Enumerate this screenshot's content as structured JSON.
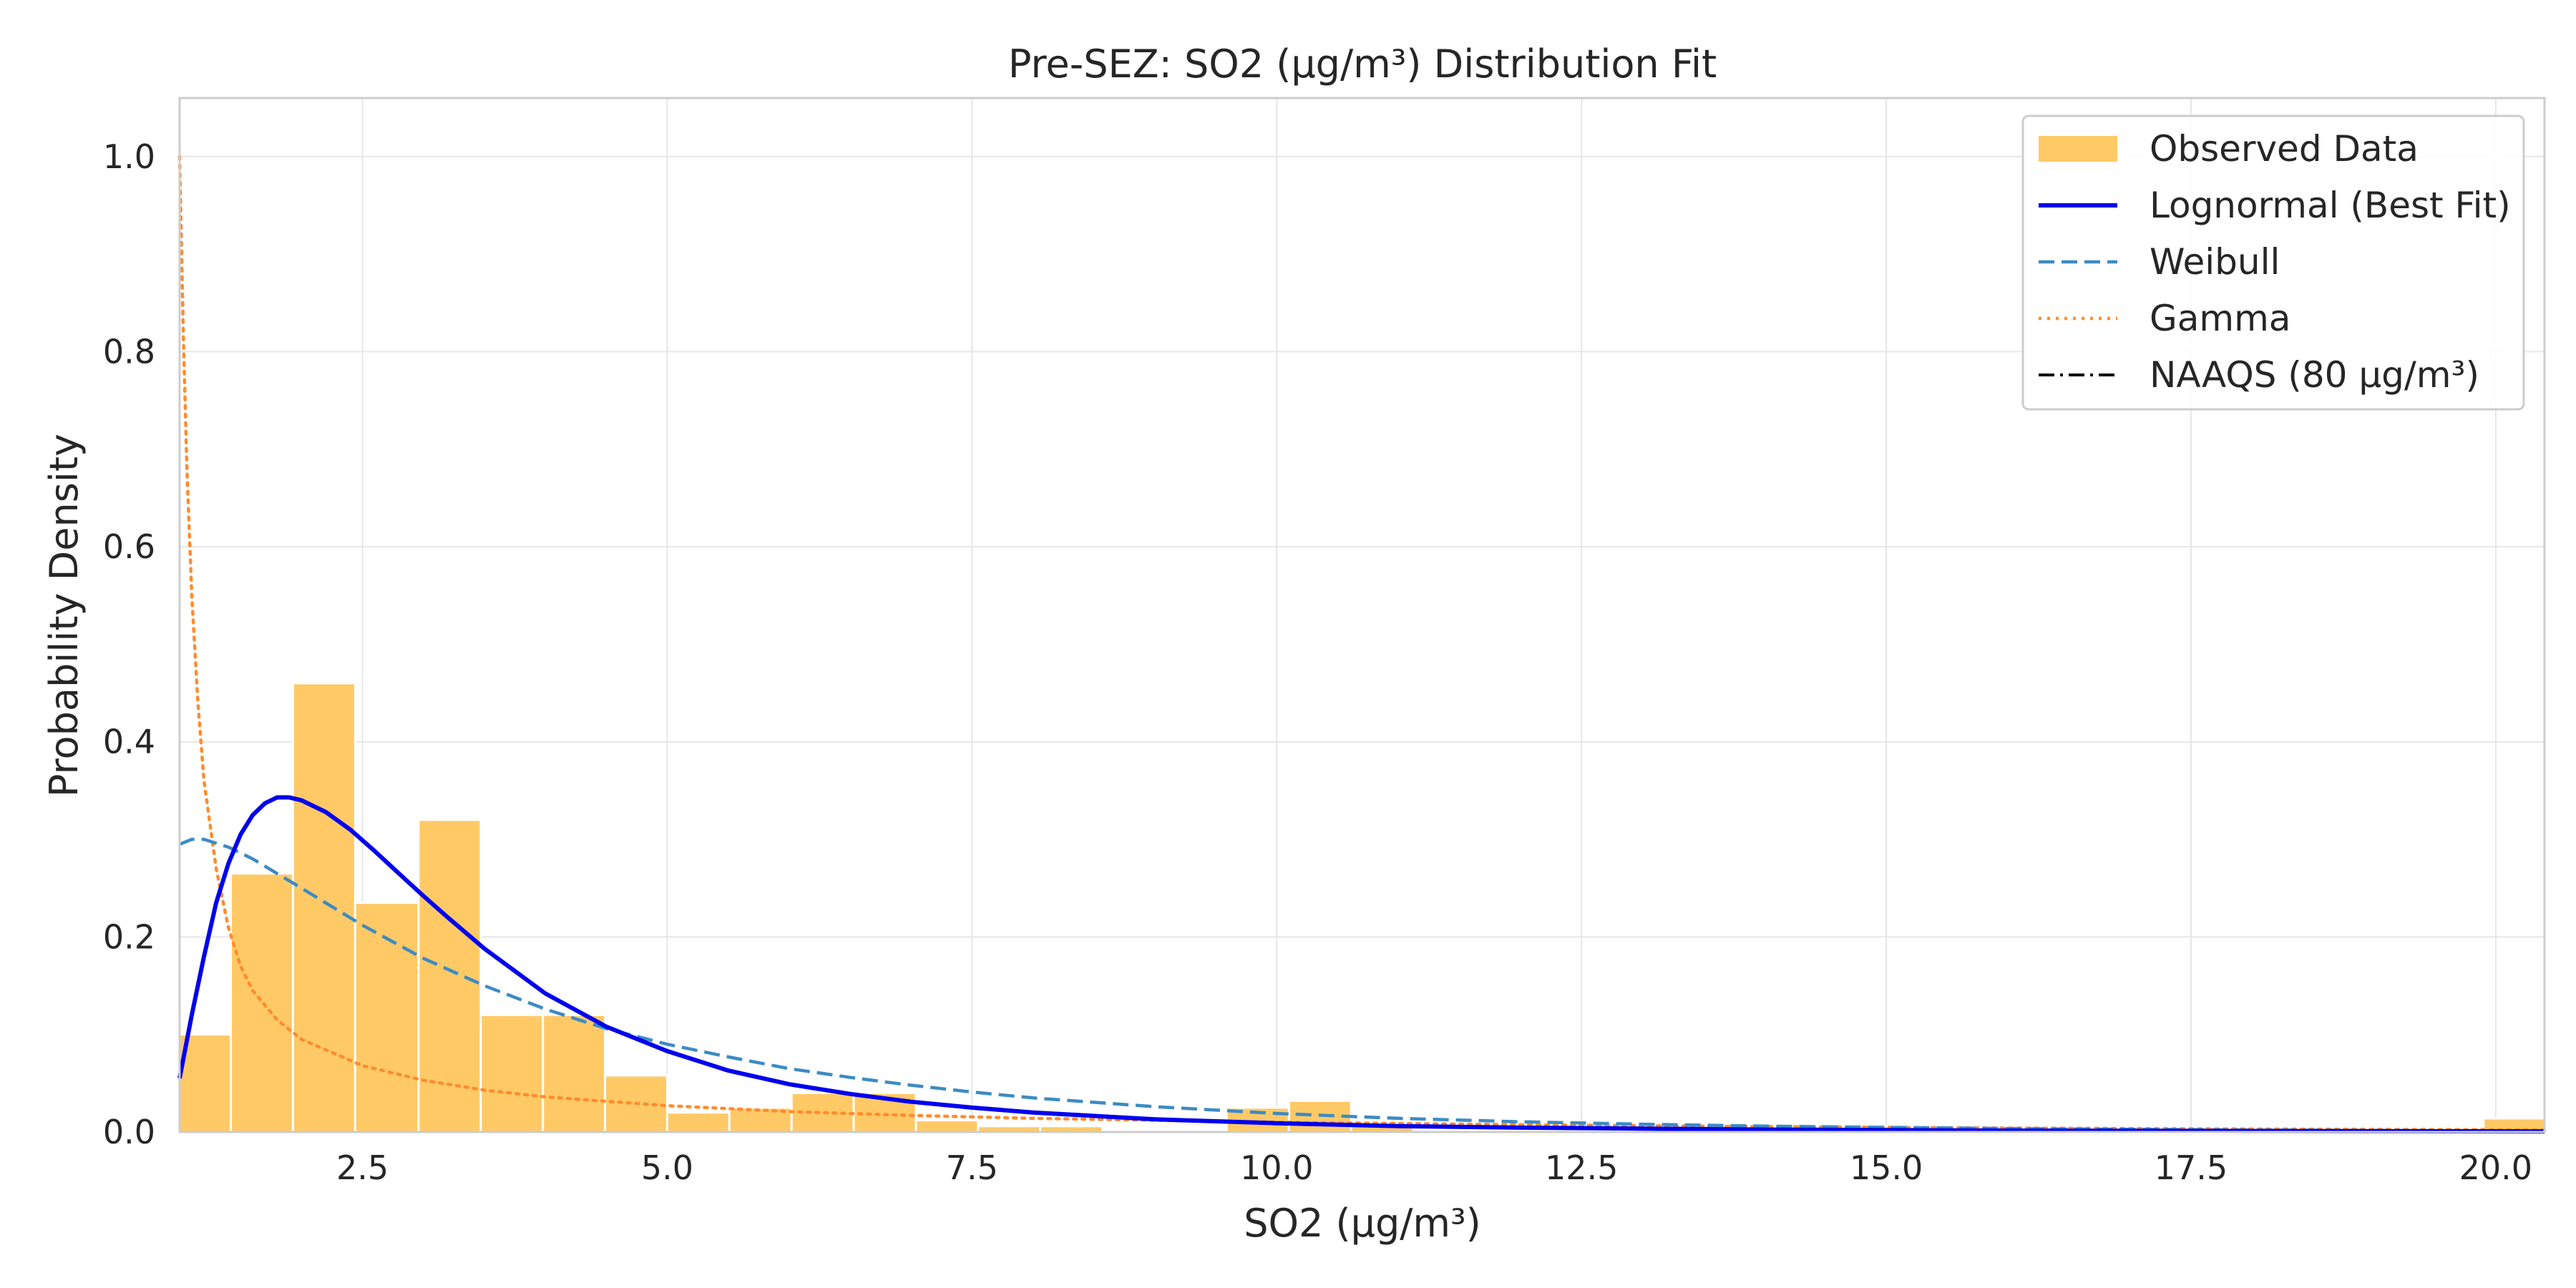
{
  "chart_data": {
    "type": "histogram-with-fitted-curves",
    "title": "Pre-SEZ: SO2 (μg/m³) Distribution Fit",
    "xlabel": "SO2 (μg/m³)",
    "ylabel": "Probability Density",
    "xlim": [
      1.0,
      20.4
    ],
    "ylim": [
      0.0,
      1.06
    ],
    "grid": true,
    "legend_position": "top-right",
    "x_ticks": [
      {
        "value": 2.5,
        "label": "2.5"
      },
      {
        "value": 5.0,
        "label": "5.0"
      },
      {
        "value": 7.5,
        "label": "7.5"
      },
      {
        "value": 10.0,
        "label": "10.0"
      },
      {
        "value": 12.5,
        "label": "12.5"
      },
      {
        "value": 15.0,
        "label": "15.0"
      },
      {
        "value": 17.5,
        "label": "17.5"
      },
      {
        "value": 20.0,
        "label": "20.0"
      }
    ],
    "y_ticks": [
      {
        "value": 0.0,
        "label": "0.0"
      },
      {
        "value": 0.2,
        "label": "0.2"
      },
      {
        "value": 0.4,
        "label": "0.4"
      },
      {
        "value": 0.6,
        "label": "0.6"
      },
      {
        "value": 0.8,
        "label": "0.8"
      },
      {
        "value": 1.0,
        "label": "1.0"
      }
    ],
    "histogram": {
      "name": "Observed Data",
      "color": "#FFC966",
      "bins": [
        {
          "x0": 1.0,
          "x1": 1.42,
          "density": 0.1
        },
        {
          "x0": 1.42,
          "x1": 1.93,
          "density": 0.265
        },
        {
          "x0": 1.93,
          "x1": 2.44,
          "density": 0.46
        },
        {
          "x0": 2.44,
          "x1": 2.96,
          "density": 0.235
        },
        {
          "x0": 2.96,
          "x1": 3.47,
          "density": 0.32
        },
        {
          "x0": 3.47,
          "x1": 3.98,
          "density": 0.12
        },
        {
          "x0": 3.98,
          "x1": 4.49,
          "density": 0.12
        },
        {
          "x0": 4.49,
          "x1": 5.0,
          "density": 0.058
        },
        {
          "x0": 5.0,
          "x1": 5.51,
          "density": 0.02
        },
        {
          "x0": 5.51,
          "x1": 6.02,
          "density": 0.025
        },
        {
          "x0": 6.02,
          "x1": 6.53,
          "density": 0.04
        },
        {
          "x0": 6.53,
          "x1": 7.04,
          "density": 0.04
        },
        {
          "x0": 7.04,
          "x1": 7.55,
          "density": 0.012
        },
        {
          "x0": 7.55,
          "x1": 8.06,
          "density": 0.006
        },
        {
          "x0": 8.06,
          "x1": 8.57,
          "density": 0.006
        },
        {
          "x0": 8.57,
          "x1": 9.08,
          "density": 0.0
        },
        {
          "x0": 9.08,
          "x1": 9.59,
          "density": 0.0
        },
        {
          "x0": 9.59,
          "x1": 10.1,
          "density": 0.025
        },
        {
          "x0": 10.1,
          "x1": 10.61,
          "density": 0.032
        },
        {
          "x0": 10.61,
          "x1": 11.12,
          "density": 0.006
        },
        {
          "x0": 19.9,
          "x1": 20.4,
          "density": 0.014
        }
      ]
    },
    "series": [
      {
        "name": "Lognormal (Best Fit)",
        "color": "#0000EE",
        "dash": "solid",
        "points": [
          [
            1.0,
            0.055
          ],
          [
            1.1,
            0.12
          ],
          [
            1.2,
            0.18
          ],
          [
            1.3,
            0.235
          ],
          [
            1.4,
            0.275
          ],
          [
            1.5,
            0.305
          ],
          [
            1.6,
            0.325
          ],
          [
            1.7,
            0.337
          ],
          [
            1.8,
            0.343
          ],
          [
            1.9,
            0.343
          ],
          [
            2.0,
            0.34
          ],
          [
            2.2,
            0.328
          ],
          [
            2.4,
            0.31
          ],
          [
            2.6,
            0.288
          ],
          [
            2.8,
            0.265
          ],
          [
            3.0,
            0.242
          ],
          [
            3.2,
            0.22
          ],
          [
            3.5,
            0.188
          ],
          [
            4.0,
            0.142
          ],
          [
            4.5,
            0.108
          ],
          [
            5.0,
            0.083
          ],
          [
            5.5,
            0.063
          ],
          [
            6.0,
            0.049
          ],
          [
            6.5,
            0.039
          ],
          [
            7.0,
            0.031
          ],
          [
            7.5,
            0.025
          ],
          [
            8.0,
            0.02
          ],
          [
            9.0,
            0.013
          ],
          [
            10.0,
            0.009
          ],
          [
            11.0,
            0.006
          ],
          [
            12.0,
            0.0045
          ],
          [
            13.0,
            0.0035
          ],
          [
            14.0,
            0.0025
          ],
          [
            16.0,
            0.0015
          ],
          [
            18.0,
            0.001
          ],
          [
            20.4,
            0.0006
          ]
        ]
      },
      {
        "name": "Weibull",
        "color": "#3C8BC4",
        "dash": "dashed",
        "points": [
          [
            1.0,
            0.295
          ],
          [
            1.1,
            0.3
          ],
          [
            1.2,
            0.3
          ],
          [
            1.4,
            0.292
          ],
          [
            1.6,
            0.28
          ],
          [
            1.8,
            0.265
          ],
          [
            2.0,
            0.25
          ],
          [
            2.5,
            0.212
          ],
          [
            3.0,
            0.178
          ],
          [
            3.5,
            0.15
          ],
          [
            4.0,
            0.126
          ],
          [
            4.5,
            0.106
          ],
          [
            5.0,
            0.09
          ],
          [
            5.5,
            0.077
          ],
          [
            6.0,
            0.065
          ],
          [
            6.5,
            0.056
          ],
          [
            7.0,
            0.048
          ],
          [
            7.5,
            0.041
          ],
          [
            8.0,
            0.035
          ],
          [
            9.0,
            0.026
          ],
          [
            10.0,
            0.019
          ],
          [
            11.0,
            0.014
          ],
          [
            12.0,
            0.0105
          ],
          [
            13.0,
            0.008
          ],
          [
            14.0,
            0.006
          ],
          [
            16.0,
            0.0035
          ],
          [
            18.0,
            0.002
          ],
          [
            20.4,
            0.0012
          ]
        ]
      },
      {
        "name": "Gamma",
        "color": "#FF8C2E",
        "dash": "dotted",
        "points": [
          [
            1.0,
            1.0
          ],
          [
            1.03,
            0.82
          ],
          [
            1.06,
            0.68
          ],
          [
            1.1,
            0.55
          ],
          [
            1.15,
            0.44
          ],
          [
            1.2,
            0.36
          ],
          [
            1.3,
            0.27
          ],
          [
            1.4,
            0.21
          ],
          [
            1.5,
            0.17
          ],
          [
            1.6,
            0.145
          ],
          [
            1.8,
            0.115
          ],
          [
            2.0,
            0.095
          ],
          [
            2.5,
            0.068
          ],
          [
            3.0,
            0.053
          ],
          [
            3.5,
            0.043
          ],
          [
            4.0,
            0.036
          ],
          [
            5.0,
            0.027
          ],
          [
            6.0,
            0.021
          ],
          [
            7.0,
            0.017
          ],
          [
            8.0,
            0.014
          ],
          [
            9.0,
            0.012
          ],
          [
            10.0,
            0.01
          ],
          [
            12.0,
            0.0075
          ],
          [
            14.0,
            0.0055
          ],
          [
            16.0,
            0.004
          ],
          [
            18.0,
            0.003
          ],
          [
            20.4,
            0.0022
          ]
        ]
      }
    ],
    "reference_line": {
      "name": "NAAQS (80 μg/m³)",
      "value": 80,
      "color": "#000000",
      "dash": "dashdot"
    },
    "legend": [
      {
        "label": "Observed Data",
        "kind": "patch"
      },
      {
        "label": "Lognormal (Best Fit)",
        "kind": "line"
      },
      {
        "label": "Weibull",
        "kind": "line"
      },
      {
        "label": "Gamma",
        "kind": "line"
      },
      {
        "label": "NAAQS (80 μg/m³)",
        "kind": "line"
      }
    ]
  }
}
